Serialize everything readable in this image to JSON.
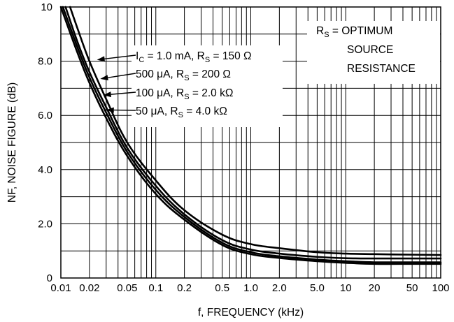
{
  "chart_data": {
    "type": "line",
    "xlabel": "f, FREQUENCY (kHz)",
    "ylabel": "NF, NOISE FIGURE (dB)",
    "xscale": "log",
    "xlim": [
      0.01,
      100
    ],
    "ylim": [
      0,
      10
    ],
    "grid": true,
    "x_ticks": [
      {
        "value": 0.01,
        "label": "0.01"
      },
      {
        "value": 0.02,
        "label": "0.02"
      },
      {
        "value": 0.05,
        "label": "0.05"
      },
      {
        "value": 0.1,
        "label": "0.1"
      },
      {
        "value": 0.2,
        "label": "0.2"
      },
      {
        "value": 0.5,
        "label": "0.5"
      },
      {
        "value": 1,
        "label": "1.0"
      },
      {
        "value": 2,
        "label": "2.0"
      },
      {
        "value": 5,
        "label": "5.0"
      },
      {
        "value": 10,
        "label": "10"
      },
      {
        "value": 20,
        "label": "20"
      },
      {
        "value": 50,
        "label": "50"
      },
      {
        "value": 100,
        "label": "100"
      }
    ],
    "y_ticks": [
      {
        "value": 0,
        "label": "0"
      },
      {
        "value": 2,
        "label": "2.0"
      },
      {
        "value": 4,
        "label": "4.0"
      },
      {
        "value": 6,
        "label": "6.0"
      },
      {
        "value": 8,
        "label": "8.0"
      },
      {
        "value": 10,
        "label": "10"
      }
    ],
    "series": [
      {
        "label_main": "I",
        "label_sub": "C",
        "label_rest": " = 1.0 mA, R",
        "label_sub2": "S",
        "label_tail": " = 150 Ω",
        "x": [
          0.0125,
          0.015,
          0.02,
          0.03,
          0.05,
          0.1,
          0.2,
          0.5,
          1,
          2,
          5,
          10,
          20,
          50,
          100
        ],
        "values": [
          10,
          9.2,
          8.0,
          6.6,
          5.0,
          3.6,
          2.5,
          1.6,
          1.25,
          1.1,
          0.95,
          0.9,
          0.88,
          0.86,
          0.85
        ]
      },
      {
        "label_main": "500 μA, R",
        "label_sub": "S",
        "label_rest": " = 200 Ω",
        "label_sub2": "",
        "label_tail": "",
        "x": [
          0.0112,
          0.015,
          0.02,
          0.03,
          0.05,
          0.1,
          0.2,
          0.5,
          1,
          2,
          5,
          10,
          20,
          50,
          100
        ],
        "values": [
          10,
          8.7,
          7.6,
          6.3,
          4.8,
          3.4,
          2.35,
          1.4,
          1.05,
          0.9,
          0.78,
          0.73,
          0.72,
          0.72,
          0.72
        ]
      },
      {
        "label_main": "100 μA, R",
        "label_sub": "S",
        "label_rest": " = 2.0 kΩ",
        "label_sub2": "",
        "label_tail": "",
        "x": [
          0.0105,
          0.015,
          0.02,
          0.03,
          0.05,
          0.1,
          0.2,
          0.5,
          1,
          2,
          5,
          10,
          20,
          50,
          100
        ],
        "values": [
          10,
          8.5,
          7.4,
          6.1,
          4.65,
          3.25,
          2.25,
          1.3,
          0.95,
          0.8,
          0.68,
          0.62,
          0.58,
          0.58,
          0.58
        ]
      },
      {
        "label_main": "50 μA, R",
        "label_sub": "S",
        "label_rest": " = 4.0 kΩ",
        "label_sub2": "",
        "label_tail": "",
        "x": [
          0.01,
          0.015,
          0.02,
          0.03,
          0.05,
          0.1,
          0.2,
          0.5,
          1,
          2,
          5,
          10,
          20,
          50,
          100
        ],
        "values": [
          10,
          8.3,
          7.2,
          5.9,
          4.5,
          3.1,
          2.15,
          1.22,
          0.88,
          0.74,
          0.62,
          0.56,
          0.52,
          0.52,
          0.52
        ]
      }
    ],
    "arrow_targets": [
      {
        "x": 0.024,
        "y": 8.05
      },
      {
        "x": 0.026,
        "y": 7.35
      },
      {
        "x": 0.028,
        "y": 6.75
      },
      {
        "x": 0.03,
        "y": 6.2
      }
    ],
    "annotation": {
      "line1_main": "R",
      "line1_sub": "S",
      "line1_rest": " = OPTIMUM",
      "line2": "SOURCE",
      "line3": "RESISTANCE"
    }
  }
}
